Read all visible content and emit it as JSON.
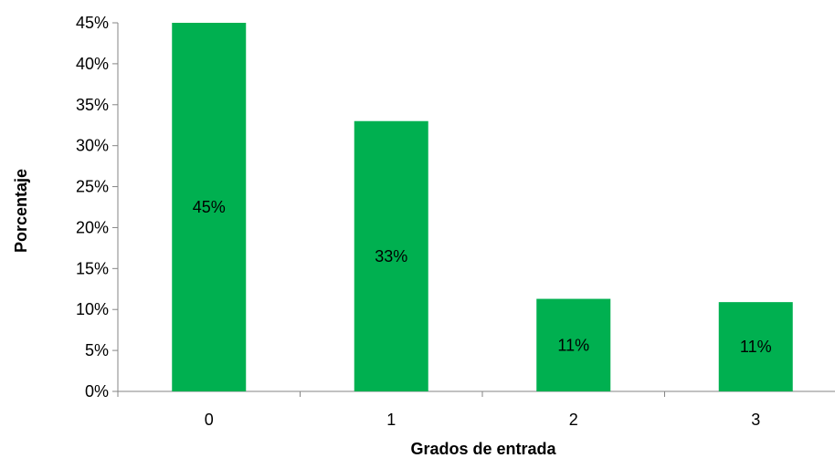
{
  "chart_data": {
    "type": "bar",
    "title": "",
    "xlabel": "Grados de entrada",
    "ylabel": "Porcentaje",
    "categories": [
      "0",
      "1",
      "2",
      "3"
    ],
    "values": [
      45,
      33,
      11.3,
      10.9
    ],
    "data_labels": [
      "45%",
      "33%",
      "11%",
      "11%"
    ],
    "ylim": [
      0,
      45
    ],
    "yticks": [
      0,
      5,
      10,
      15,
      20,
      25,
      30,
      35,
      40,
      45
    ],
    "ytick_labels": [
      "0%",
      "5%",
      "10%",
      "15%",
      "20%",
      "25%",
      "30%",
      "35%",
      "40%",
      "45%"
    ],
    "grid": false,
    "legend": "none",
    "bar_color": "#00b050"
  }
}
